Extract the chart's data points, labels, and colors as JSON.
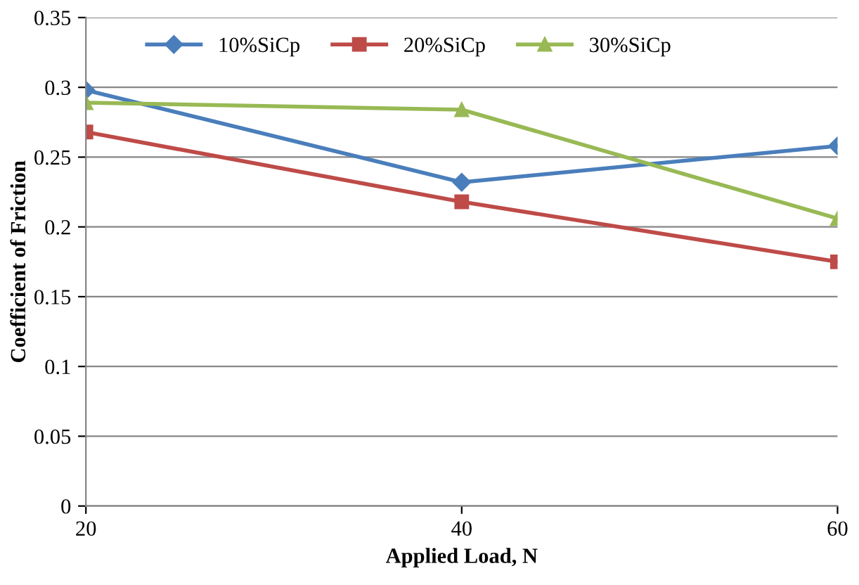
{
  "chart_data": {
    "type": "line",
    "xlabel": "Applied Load, N",
    "ylabel": "Coefficient of Friction",
    "x": [
      20,
      40,
      60
    ],
    "xlim": [
      20,
      60
    ],
    "xticks": [
      20,
      40,
      60
    ],
    "ylim": [
      0,
      0.35
    ],
    "yticks": [
      0,
      0.05,
      0.1,
      0.15,
      0.2,
      0.25,
      0.3,
      0.35
    ],
    "grid": "y",
    "legend": "top",
    "series": [
      {
        "name": "10%SiCp",
        "color": "#4a7ebb",
        "marker": "diamond",
        "values": [
          0.298,
          0.232,
          0.258
        ]
      },
      {
        "name": "20%SiCp",
        "color": "#be4b48",
        "marker": "square",
        "values": [
          0.268,
          0.218,
          0.175
        ]
      },
      {
        "name": "30%SiCp",
        "color": "#98b954",
        "marker": "triangle",
        "values": [
          0.289,
          0.284,
          0.206
        ]
      }
    ]
  }
}
